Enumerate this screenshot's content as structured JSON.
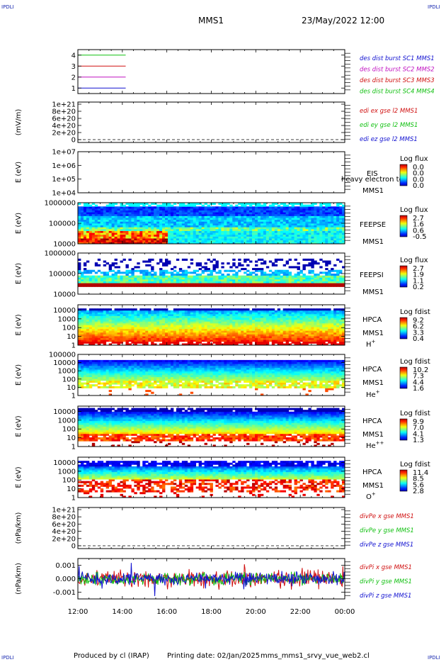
{
  "header": {
    "corner_label": "IPDLI",
    "spacecraft": "MMS1",
    "datetime": "23/May/2022 12:00"
  },
  "footer": {
    "produced_by": "Produced by cl (IRAP)",
    "printing_date": "Printing date: 02/Jan/2025",
    "file_name": "mms_mms1_srvy_vue_web2.cl"
  },
  "colors": {
    "blue": "#1010d0",
    "green": "#10c010",
    "red": "#d01010",
    "magenta": "#c010c0"
  },
  "chart_data": {
    "type": "heatmap",
    "x_ticks": [
      "12:00",
      "14:00",
      "16:00",
      "18:00",
      "20:00",
      "22:00",
      "00:00"
    ],
    "x_range_hours": [
      12,
      24
    ],
    "panels": [
      {
        "id": "burst",
        "type": "line",
        "y_ticks": [
          "4",
          "3",
          "2",
          "1"
        ],
        "ylim": [
          0.5,
          4.5
        ],
        "series": [
          {
            "name": "des dist burst SC1 MMS1",
            "color": "#1010d0",
            "y": 1,
            "x": [
              12.0,
              14.15
            ]
          },
          {
            "name": "des dist burst SC2 MMS2",
            "color": "#c010c0",
            "y": 2,
            "x": [
              12.0,
              14.15
            ]
          },
          {
            "name": "des dist burst SC3 MMS3",
            "color": "#d01010",
            "y": 3,
            "x": [
              12.0,
              14.15
            ]
          },
          {
            "name": "des dist burst SC4 MMS4",
            "color": "#10c010",
            "y": 4,
            "x": [
              12.0,
              14.15
            ]
          }
        ]
      },
      {
        "id": "edi",
        "type": "line",
        "ylabel": "(mV/m)",
        "y_ticks": [
          "1e+21",
          "8e+20",
          "6e+20",
          "4e+20",
          "2e+20",
          "0"
        ],
        "ylim": [
          0,
          1e+21
        ],
        "zero_line": true,
        "series": [
          {
            "name": "edi ex gse l2 MMS1",
            "color": "#d01010"
          },
          {
            "name": "edi ey gse l2 MMS1",
            "color": "#10c010"
          },
          {
            "name": "edi ez gse l2 MMS1",
            "color": "#1010d0"
          }
        ]
      },
      {
        "id": "eis",
        "type": "heatmap",
        "ylabel": "E (eV)",
        "y_ticks": [
          "1e+07",
          "1e+06",
          "1e+05",
          "1e+04"
        ],
        "ylim": [
          10000,
          10000000
        ],
        "log_y": true,
        "instrument": [
          "EIS",
          "MMS1"
        ],
        "overlay_text": "heavy electron to",
        "colorbar": {
          "title": "Log flux",
          "ticks": [
            "0.0",
            "0.0",
            "0.0",
            "0.0"
          ]
        },
        "data_profile": "empty"
      },
      {
        "id": "feepse",
        "type": "heatmap",
        "ylabel": "E (eV)",
        "y_ticks": [
          "1000000",
          "100000",
          "10000"
        ],
        "ylim": [
          10000,
          1000000
        ],
        "log_y": true,
        "instrument": [
          "FEEPSE",
          "MMS1"
        ],
        "colorbar": {
          "title": "Log flux",
          "ticks": [
            "2.7",
            "1.6",
            "0.6",
            "-0.5"
          ]
        },
        "data_profile": "feepse"
      },
      {
        "id": "feepsi",
        "type": "heatmap",
        "ylabel": "E (eV)",
        "y_ticks": [
          "1000000",
          "100000",
          "10000"
        ],
        "ylim": [
          10000,
          1000000
        ],
        "log_y": true,
        "instrument": [
          "FEEPSI",
          "MMS1"
        ],
        "colorbar": {
          "title": "Log flux",
          "ticks": [
            "2.7",
            "1.9",
            "1.1",
            "0.2"
          ]
        },
        "data_profile": "feepsi"
      },
      {
        "id": "hpca_h",
        "type": "heatmap",
        "ylabel": "E (eV)",
        "y_ticks": [
          "10000",
          "1000",
          "100",
          "10",
          "1"
        ],
        "ylim": [
          1,
          40000
        ],
        "log_y": true,
        "instrument": [
          "HPCA",
          "MMS1"
        ],
        "species": {
          "base": "H",
          "sup": "+"
        },
        "colorbar": {
          "title": "Log fdist",
          "ticks": [
            "9.2",
            "6.2",
            "3.3",
            "0.4"
          ]
        },
        "data_profile": "hpca_h"
      },
      {
        "id": "hpca_he",
        "type": "heatmap",
        "ylabel": "E (eV)",
        "y_ticks": [
          "100000",
          "10000",
          "1000",
          "100",
          "10",
          "1"
        ],
        "ylim": [
          1,
          100000
        ],
        "log_y": true,
        "instrument": [
          "HPCA",
          "MMS1"
        ],
        "species": {
          "base": "He",
          "sup": "+"
        },
        "colorbar": {
          "title": "Log fdist",
          "ticks": [
            "10.2",
            "7.3",
            "4.4",
            "1.6"
          ]
        },
        "data_profile": "hpca_he"
      },
      {
        "id": "hpca_he2",
        "type": "heatmap",
        "ylabel": "E (eV)",
        "y_ticks": [
          "10000",
          "1000",
          "100",
          "10",
          "1"
        ],
        "ylim": [
          1,
          40000
        ],
        "log_y": true,
        "instrument": [
          "HPCA",
          "MMS1"
        ],
        "species": {
          "base": "He",
          "sup": "++"
        },
        "colorbar": {
          "title": "Log fdist",
          "ticks": [
            "9.9",
            "7.0",
            "4.1",
            "1.3"
          ]
        },
        "data_profile": "hpca_he2"
      },
      {
        "id": "hpca_o",
        "type": "heatmap",
        "ylabel": "E (eV)",
        "y_ticks": [
          "10000",
          "1000",
          "100",
          "10",
          "1"
        ],
        "ylim": [
          1,
          40000
        ],
        "log_y": true,
        "instrument": [
          "HPCA",
          "MMS1"
        ],
        "species": {
          "base": "O",
          "sup": "+"
        },
        "colorbar": {
          "title": "Log fdist",
          "ticks": [
            "11.4",
            "8.5",
            "5.6",
            "2.8"
          ]
        },
        "data_profile": "hpca_o"
      },
      {
        "id": "divpe",
        "type": "line",
        "ylabel": "(nPa/km)",
        "y_ticks": [
          "1e+21",
          "8e+20",
          "6e+20",
          "4e+20",
          "2e+20",
          "0"
        ],
        "ylim": [
          0,
          1e+21
        ],
        "zero_line": true,
        "series": [
          {
            "name": "divPe x gse MMS1",
            "color": "#d01010"
          },
          {
            "name": "divPe y gse MMS1",
            "color": "#10c010"
          },
          {
            "name": "divPe z gse MMS1",
            "color": "#1010d0"
          }
        ]
      },
      {
        "id": "divpi",
        "type": "line",
        "ylabel": "(nPa/km)",
        "y_ticks": [
          "0.001",
          "0.000",
          "-0.001"
        ],
        "ylim": [
          -0.0015,
          0.0015
        ],
        "noise": true,
        "series": [
          {
            "name": "divPi x gse MMS1",
            "color": "#d01010",
            "amplitude": 0.0005
          },
          {
            "name": "divPi y gse MMS1",
            "color": "#10c010",
            "amplitude": 0.00035
          },
          {
            "name": "divPi z gse MMS1",
            "color": "#1010d0",
            "amplitude": 0.0004
          }
        ]
      }
    ]
  }
}
